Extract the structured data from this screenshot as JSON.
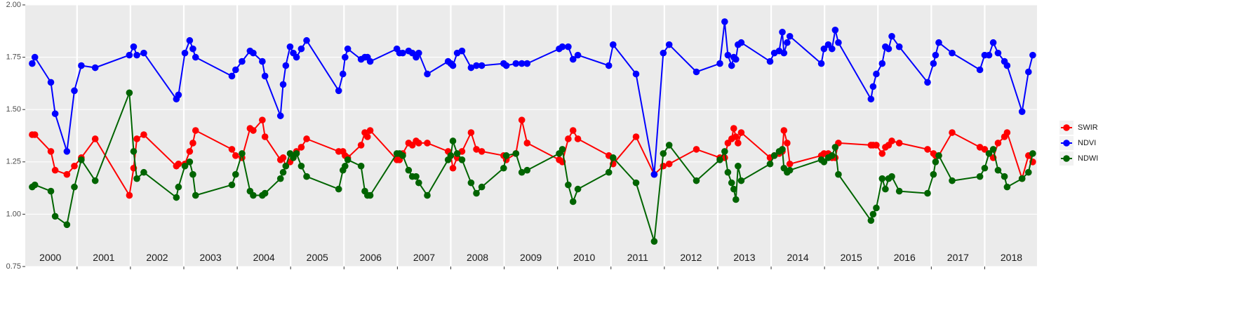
{
  "chart_data": {
    "type": "line",
    "x": [
      2000.16,
      2000.21,
      2000.51,
      2000.59,
      2000.81,
      2000.95,
      2001.08,
      2001.34,
      2001.98,
      2002.06,
      2002.12,
      2002.25,
      2002.86,
      2002.9,
      2003.02,
      2003.11,
      2003.17,
      2003.22,
      2003.9,
      2003.97,
      2004.09,
      2004.24,
      2004.3,
      2004.47,
      2004.52,
      2004.81,
      2004.86,
      2004.91,
      2004.99,
      2005.05,
      2005.11,
      2005.2,
      2005.3,
      2005.9,
      2005.98,
      2006.02,
      2006.07,
      2006.32,
      2006.39,
      2006.44,
      2006.49,
      2006.99,
      2007.04,
      2007.1,
      2007.21,
      2007.28,
      2007.35,
      2007.4,
      2007.56,
      2007.95,
      2008.0,
      2008.04,
      2008.12,
      2008.21,
      2008.38,
      2008.48,
      2008.58,
      2008.99,
      2009.04,
      2009.22,
      2009.33,
      2009.43,
      2010.03,
      2010.09,
      2010.2,
      2010.29,
      2010.38,
      2010.96,
      2011.04,
      2011.47,
      2011.81,
      2011.98,
      2012.09,
      2012.6,
      2013.04,
      2013.13,
      2013.19,
      2013.26,
      2013.3,
      2013.34,
      2013.38,
      2013.44,
      2013.98,
      2014.06,
      2014.15,
      2014.21,
      2014.24,
      2014.3,
      2014.35,
      2014.94,
      2014.99,
      2015.07,
      2015.14,
      2015.2,
      2015.26,
      2015.87,
      2015.91,
      2015.97,
      2016.08,
      2016.14,
      2016.2,
      2016.26,
      2016.4,
      2016.93,
      2017.04,
      2017.08,
      2017.14,
      2017.39,
      2017.91,
      2018.0,
      2018.08,
      2018.16,
      2018.25,
      2018.37,
      2018.42,
      2018.7,
      2018.82,
      2018.9
    ],
    "series": [
      {
        "name": "SWIR",
        "color": "#ff0000",
        "values": [
          1.38,
          1.38,
          1.3,
          1.21,
          1.19,
          1.23,
          1.27,
          1.36,
          1.09,
          1.22,
          1.36,
          1.38,
          1.23,
          1.24,
          1.24,
          1.3,
          1.34,
          1.4,
          1.31,
          1.28,
          1.27,
          1.41,
          1.4,
          1.45,
          1.37,
          1.26,
          1.27,
          1.23,
          1.25,
          1.27,
          1.3,
          1.32,
          1.36,
          1.3,
          1.3,
          1.28,
          1.27,
          1.33,
          1.39,
          1.37,
          1.4,
          1.26,
          1.26,
          1.29,
          1.34,
          1.33,
          1.35,
          1.34,
          1.34,
          1.3,
          1.28,
          1.22,
          1.27,
          1.3,
          1.39,
          1.31,
          1.3,
          1.28,
          1.26,
          1.29,
          1.45,
          1.34,
          1.26,
          1.25,
          1.36,
          1.4,
          1.36,
          1.28,
          1.24,
          1.37,
          1.19,
          1.23,
          1.24,
          1.31,
          1.27,
          1.27,
          1.34,
          1.36,
          1.41,
          1.37,
          1.34,
          1.39,
          1.27,
          1.28,
          1.29,
          1.3,
          1.4,
          1.34,
          1.24,
          1.28,
          1.29,
          1.29,
          1.27,
          1.27,
          1.34,
          1.33,
          1.33,
          1.33,
          1.29,
          1.32,
          1.33,
          1.35,
          1.34,
          1.31,
          1.29,
          1.28,
          1.28,
          1.39,
          1.32,
          1.31,
          1.29,
          1.27,
          1.34,
          1.37,
          1.39,
          1.17,
          1.28,
          1.25
        ]
      },
      {
        "name": "NDVI",
        "color": "#0000ff",
        "values": [
          1.72,
          1.75,
          1.63,
          1.48,
          1.3,
          1.59,
          1.71,
          1.7,
          1.76,
          1.8,
          1.76,
          1.77,
          1.55,
          1.57,
          1.77,
          1.83,
          1.79,
          1.75,
          1.66,
          1.69,
          1.73,
          1.78,
          1.77,
          1.73,
          1.66,
          1.47,
          1.62,
          1.71,
          1.8,
          1.77,
          1.75,
          1.79,
          1.83,
          1.59,
          1.67,
          1.75,
          1.79,
          1.74,
          1.75,
          1.75,
          1.73,
          1.79,
          1.77,
          1.77,
          1.78,
          1.77,
          1.75,
          1.77,
          1.67,
          1.73,
          1.72,
          1.71,
          1.77,
          1.78,
          1.7,
          1.71,
          1.71,
          1.72,
          1.71,
          1.72,
          1.72,
          1.72,
          1.79,
          1.8,
          1.8,
          1.74,
          1.76,
          1.71,
          1.81,
          1.67,
          1.19,
          1.77,
          1.81,
          1.68,
          1.72,
          1.92,
          1.76,
          1.71,
          1.75,
          1.74,
          1.81,
          1.82,
          1.73,
          1.77,
          1.78,
          1.87,
          1.77,
          1.82,
          1.85,
          1.72,
          1.79,
          1.81,
          1.79,
          1.88,
          1.82,
          1.55,
          1.61,
          1.67,
          1.72,
          1.8,
          1.79,
          1.85,
          1.8,
          1.63,
          1.72,
          1.76,
          1.82,
          1.77,
          1.69,
          1.76,
          1.76,
          1.82,
          1.77,
          1.73,
          1.71,
          1.49,
          1.68,
          1.76
        ]
      },
      {
        "name": "NDWI",
        "color": "#006400",
        "values": [
          1.13,
          1.14,
          1.11,
          0.99,
          0.95,
          1.13,
          1.26,
          1.16,
          1.58,
          1.3,
          1.17,
          1.2,
          1.08,
          1.13,
          1.23,
          1.25,
          1.19,
          1.09,
          1.14,
          1.19,
          1.29,
          1.11,
          1.09,
          1.09,
          1.1,
          1.17,
          1.2,
          1.23,
          1.29,
          1.27,
          1.29,
          1.23,
          1.18,
          1.12,
          1.21,
          1.23,
          1.26,
          1.23,
          1.11,
          1.09,
          1.09,
          1.29,
          1.29,
          1.28,
          1.21,
          1.18,
          1.18,
          1.15,
          1.09,
          1.26,
          1.28,
          1.35,
          1.29,
          1.26,
          1.15,
          1.1,
          1.13,
          1.22,
          1.28,
          1.29,
          1.2,
          1.21,
          1.29,
          1.31,
          1.14,
          1.06,
          1.12,
          1.2,
          1.27,
          1.15,
          0.87,
          1.29,
          1.33,
          1.16,
          1.26,
          1.3,
          1.2,
          1.15,
          1.12,
          1.07,
          1.23,
          1.16,
          1.24,
          1.28,
          1.3,
          1.31,
          1.22,
          1.2,
          1.21,
          1.26,
          1.25,
          1.27,
          1.28,
          1.32,
          1.19,
          0.97,
          1.0,
          1.03,
          1.17,
          1.12,
          1.17,
          1.18,
          1.11,
          1.1,
          1.19,
          1.25,
          1.28,
          1.16,
          1.18,
          1.22,
          1.29,
          1.31,
          1.21,
          1.18,
          1.13,
          1.17,
          1.2,
          1.29
        ]
      }
    ],
    "xlim": [
      2000.03,
      2018.98
    ],
    "xticks": [
      2001,
      2002,
      2003,
      2004,
      2005,
      2006,
      2007,
      2008,
      2009,
      2010,
      2011,
      2012,
      2013,
      2014,
      2015,
      2016,
      2017,
      2018
    ],
    "ylim": [
      0.75,
      2.0
    ],
    "yticks": [
      0.75,
      {
        "value": 1.0,
        "label": "1.00"
      },
      1.25,
      {
        "value": 1.5,
        "label": "1.50"
      },
      1.75,
      {
        "value": 2.0,
        "label": "2.00"
      }
    ],
    "annotations": [
      {
        "text": "2000",
        "x": 2000.5,
        "y": 0.79
      },
      {
        "text": "2001",
        "x": 2001.5,
        "y": 0.79
      },
      {
        "text": "2002",
        "x": 2002.5,
        "y": 0.79
      },
      {
        "text": "2003",
        "x": 2003.5,
        "y": 0.79
      },
      {
        "text": "2004",
        "x": 2004.5,
        "y": 0.79
      },
      {
        "text": "2005",
        "x": 2005.5,
        "y": 0.79
      },
      {
        "text": "2006",
        "x": 2006.5,
        "y": 0.79
      },
      {
        "text": "2007",
        "x": 2007.5,
        "y": 0.79
      },
      {
        "text": "2008",
        "x": 2008.5,
        "y": 0.79
      },
      {
        "text": "2009",
        "x": 2009.5,
        "y": 0.79
      },
      {
        "text": "2010",
        "x": 2010.5,
        "y": 0.79
      },
      {
        "text": "2011",
        "x": 2011.5,
        "y": 0.79
      },
      {
        "text": "2012",
        "x": 2012.5,
        "y": 0.79
      },
      {
        "text": "2013",
        "x": 2013.5,
        "y": 0.79
      },
      {
        "text": "2014",
        "x": 2014.5,
        "y": 0.79
      },
      {
        "text": "2015",
        "x": 2015.5,
        "y": 0.79
      },
      {
        "text": "2016",
        "x": 2016.5,
        "y": 0.79
      },
      {
        "text": "2017",
        "x": 2017.5,
        "y": 0.79
      },
      {
        "text": "2018",
        "x": 2018.5,
        "y": 0.79
      }
    ],
    "grid": true,
    "legend": "right"
  }
}
